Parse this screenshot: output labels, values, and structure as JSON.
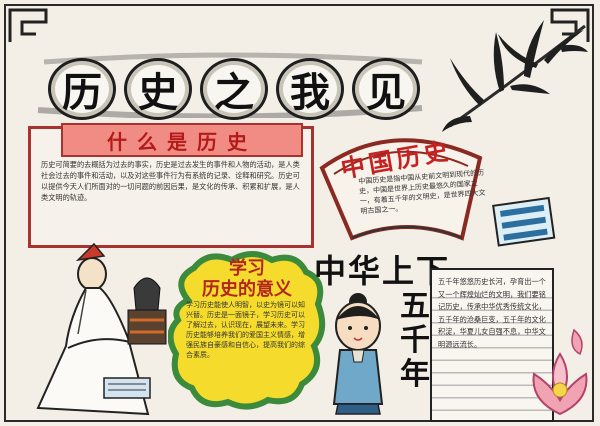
{
  "title": {
    "chars": [
      "历",
      "史",
      "之",
      "我",
      "见"
    ]
  },
  "what_is_history": {
    "heading": "什么是历史",
    "text": "历史可简要的去概括为过去的事实，历史是过去发生的事件和人物的活动，是人类社会过去的事件和活动，以及对这些事件行为有系统的记录、诠释和研究。历史可以提供今天人们所面对的一切问题的前因后果，是文化的传承、积累和扩展，是人类文明的轨迹。"
  },
  "china_history": {
    "heading": "中国历史",
    "text": "中国历史是指中国从史前文明到现代的历史，中国是世界上历史最悠久的国家之一，有着五千年的文明史，是世界四大文明古国之一。"
  },
  "meaning_of_learning": {
    "heading_line1": "学习",
    "heading_line2": "历史的意义",
    "text": "学习历史能使人明智，以史为镜可以知兴替。历史是一面镜子，学习历史可以了解过去，认识现在，展望未来。学习历史能够培养我们的爱国主义情感，增强民族自豪感和自信心，提高我们的综合素质。"
  },
  "vertical_slogan": {
    "line1": "中华上下",
    "line2": "五千年"
  },
  "paper_note": {
    "text": "五千年悠悠历史长河，孕育出一个又一个辉煌灿烂的文明，我们要铭记历史，传承中华优秀传统文化，五千年的沧桑巨变，五千年的文化积淀，华夏儿女自强不息，中华文明源远流长。"
  },
  "colors": {
    "accent_red": "#b31b1b",
    "pink_fill": "#f08c84",
    "cloud_yellow": "#f5dc2c",
    "cloud_green": "#3c8a3c",
    "ink": "#1e1e1e"
  }
}
